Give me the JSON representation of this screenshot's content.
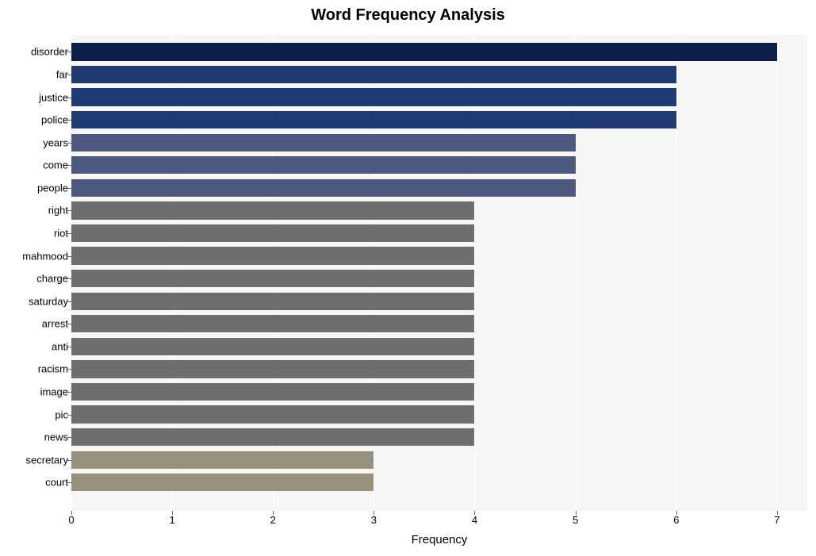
{
  "chart": {
    "type": "bar-horizontal",
    "title": "Word Frequency Analysis",
    "title_fontsize": 20,
    "title_fontweight": "bold",
    "xlabel": "Frequency",
    "xlabel_fontsize": 15,
    "background_color": "#ffffff",
    "plot_background_color": "#f6f6f6",
    "grid_color": "#ffffff",
    "text_color": "#000000",
    "tick_fontsize": 13,
    "ylabel_fontsize": 13,
    "xlim": [
      0,
      7.3
    ],
    "xtick_start": 0,
    "xtick_step": 1,
    "xtick_end": 7,
    "bar_height_ratio": 0.78,
    "categories": [
      "disorder",
      "far",
      "justice",
      "police",
      "years",
      "come",
      "people",
      "right",
      "riot",
      "mahmood",
      "charge",
      "saturday",
      "arrest",
      "anti",
      "racism",
      "image",
      "pic",
      "news",
      "secretary",
      "court"
    ],
    "values": [
      7,
      6,
      6,
      6,
      5,
      5,
      5,
      4,
      4,
      4,
      4,
      4,
      4,
      4,
      4,
      4,
      4,
      4,
      3,
      3
    ],
    "bar_colors": [
      "#0b1f4a",
      "#1f3972",
      "#203a73",
      "#203a73",
      "#4d587e",
      "#4d587e",
      "#4d587e",
      "#6e6e6e",
      "#6e6e6e",
      "#6e6e6e",
      "#6e6e6e",
      "#6e6e6e",
      "#6e6e6e",
      "#6e6e6e",
      "#6e6e6e",
      "#6e6e6e",
      "#6e6e6e",
      "#6e6e6e",
      "#97907a",
      "#97907a"
    ]
  }
}
